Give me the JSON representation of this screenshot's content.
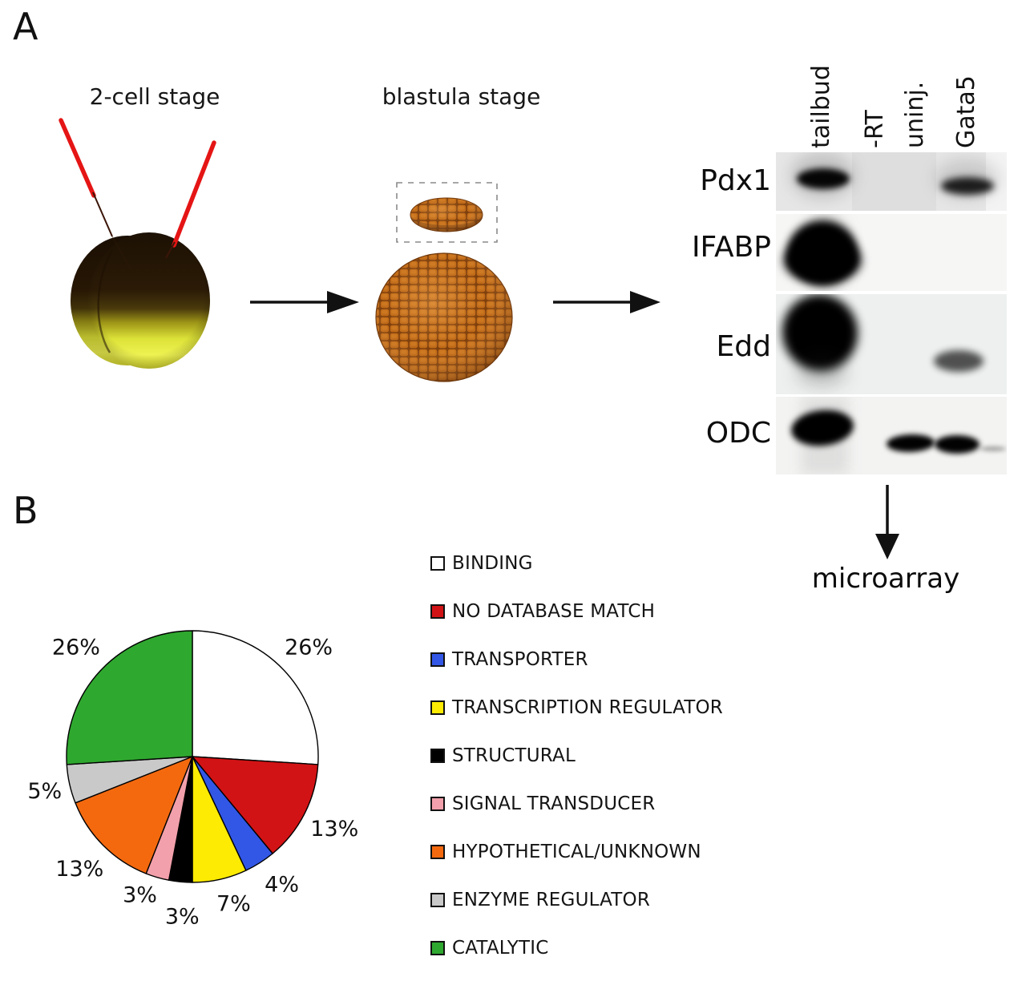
{
  "panel_a": {
    "label": "A",
    "stage1_label": "2-cell stage",
    "stage2_label": "blastula stage",
    "microarray_label": "microarray",
    "illustration_colors": {
      "needle_red": "#e51515",
      "embryo_dark_brown": "#2b1a06",
      "embryo_yellow": "#eef350",
      "blastula_orange": "#c06a18"
    },
    "gel": {
      "lanes": [
        "tailbud",
        "-RT",
        "uninj.",
        "Gata5"
      ],
      "rows": [
        {
          "label": "Pdx1",
          "bands": [
            {
              "lane": "tailbud",
              "intensity": "strong"
            },
            {
              "lane": "Gata5",
              "intensity": "medium"
            }
          ]
        },
        {
          "label": "IFABP",
          "bands": [
            {
              "lane": "tailbud",
              "intensity": "saturated"
            }
          ]
        },
        {
          "label": "Edd",
          "bands": [
            {
              "lane": "tailbud",
              "intensity": "saturated"
            },
            {
              "lane": "Gata5",
              "intensity": "weak"
            }
          ]
        },
        {
          "label": "ODC",
          "bands": [
            {
              "lane": "tailbud",
              "intensity": "strong"
            },
            {
              "lane": "uninj.",
              "intensity": "strong"
            },
            {
              "lane": "Gata5",
              "intensity": "strong"
            }
          ]
        }
      ]
    }
  },
  "panel_b": {
    "label": "B"
  },
  "chart_data": {
    "type": "pie",
    "title": "",
    "start_angle_deg": 0,
    "direction": "clockwise",
    "legend_position": "right",
    "outline_color": "#000000",
    "slices": [
      {
        "label": "BINDING",
        "value": 26,
        "pct_label": "26%",
        "color": "#ffffff"
      },
      {
        "label": "NO DATABASE MATCH",
        "value": 13,
        "pct_label": "13%",
        "color": "#d21315"
      },
      {
        "label": "TRANSPORTER",
        "value": 4,
        "pct_label": "4%",
        "color": "#3257e6"
      },
      {
        "label": "TRANSCRIPTION REGULATOR",
        "value": 7,
        "pct_label": "7%",
        "color": "#fdeb03"
      },
      {
        "label": "STRUCTURAL",
        "value": 3,
        "pct_label": "3%",
        "color": "#000000"
      },
      {
        "label": "SIGNAL TRANSDUCER",
        "value": 3,
        "pct_label": "3%",
        "color": "#f2a0ab"
      },
      {
        "label": "HYPOTHETICAL/UNKNOWN",
        "value": 13,
        "pct_label": "13%",
        "color": "#f4690e"
      },
      {
        "label": "ENZYME REGULATOR",
        "value": 5,
        "pct_label": "5%",
        "color": "#c9c9c9"
      },
      {
        "label": "CATALYTIC",
        "value": 26,
        "pct_label": "26%",
        "color": "#2fa82f"
      }
    ]
  }
}
